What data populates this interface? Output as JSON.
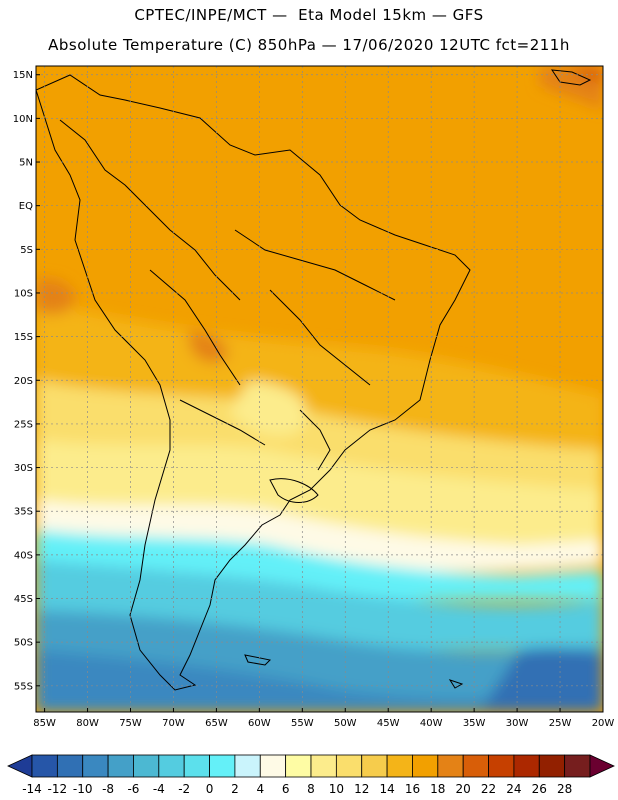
{
  "header": {
    "line1": "CPTEC/INPE/MCT —  Eta Model 15km — GFS",
    "line2": "Absolute Temperature (C) 850hPa — 17/06/2020 12UTC fct=211h"
  },
  "map": {
    "lat_labels": [
      "15N",
      "10N",
      "5N",
      "EQ",
      "5S",
      "10S",
      "15S",
      "20S",
      "25S",
      "30S",
      "35S",
      "40S",
      "45S",
      "50S",
      "55S"
    ],
    "lon_labels": [
      "85W",
      "80W",
      "75W",
      "70W",
      "65W",
      "60W",
      "55W",
      "50W",
      "45W",
      "40W",
      "35W",
      "30W",
      "25W",
      "20W"
    ],
    "lat_range": [
      -58,
      16
    ],
    "lon_range": [
      -86,
      -20
    ]
  },
  "colorbar": {
    "labels": [
      "-14",
      "-12",
      "-10",
      "-8",
      "-6",
      "-4",
      "-2",
      "0",
      "2",
      "4",
      "6",
      "8",
      "10",
      "12",
      "14",
      "16",
      "18",
      "20",
      "22",
      "24",
      "26",
      "28"
    ],
    "colors": [
      "#1e3c96",
      "#2656a8",
      "#3070b4",
      "#3a88c0",
      "#44a0c8",
      "#4cb8d2",
      "#54cce0",
      "#5ce0ec",
      "#64f0f8",
      "#caf4fc",
      "#fefae6",
      "#fefca4",
      "#fcec8c",
      "#fade6c",
      "#f6cc4c",
      "#f4b418",
      "#f2a000",
      "#e48216",
      "#d85e08",
      "#c64000",
      "#ac2800",
      "#922000",
      "#761e1e",
      "#6a0030"
    ]
  },
  "colors": {
    "coast": "#000000",
    "grid": "#9a9a9a"
  }
}
